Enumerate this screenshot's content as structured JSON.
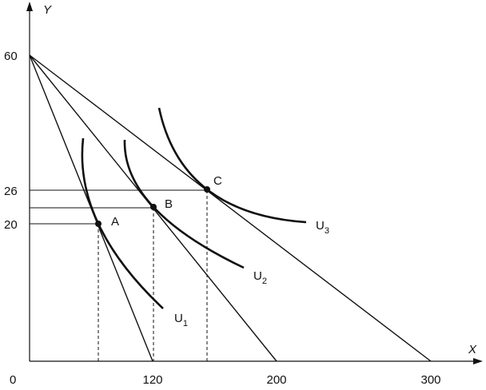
{
  "axes": {
    "y_label": "Y",
    "x_label": "X",
    "origin": "0",
    "y_ticks": [
      "60",
      "26",
      "20"
    ],
    "x_ticks": [
      "120",
      "200",
      "300"
    ]
  },
  "points": [
    "A",
    "B",
    "C"
  ],
  "curves": [
    {
      "name": "U",
      "subscript": "1"
    },
    {
      "name": "U",
      "subscript": "2"
    },
    {
      "name": "U",
      "subscript": "3"
    }
  ]
}
